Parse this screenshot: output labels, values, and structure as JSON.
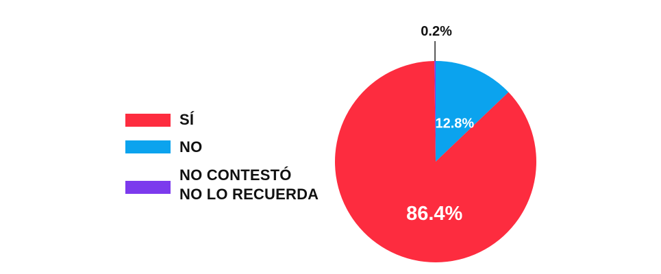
{
  "chart_data": {
    "type": "pie",
    "title": "",
    "slices": [
      {
        "label": "SÍ",
        "value": 86.4,
        "display": "86.4%",
        "color": "#fd2c3f"
      },
      {
        "label": "NO",
        "value": 12.8,
        "display": "12.8%",
        "color": "#0ba3ee"
      },
      {
        "label": "NO CONTESTÓ NO LO RECUERDA",
        "value": 0.2,
        "display": "0.2%",
        "color": "#7c3aed"
      }
    ],
    "legend": {
      "position": "left",
      "items": [
        {
          "label_lines": [
            "SÍ"
          ],
          "color": "#fd2c3f"
        },
        {
          "label_lines": [
            "NO"
          ],
          "color": "#0ba3ee"
        },
        {
          "label_lines": [
            "NO CONTESTÓ",
            "NO LO RECUERDA"
          ],
          "color": "#7c3aed"
        }
      ]
    }
  }
}
